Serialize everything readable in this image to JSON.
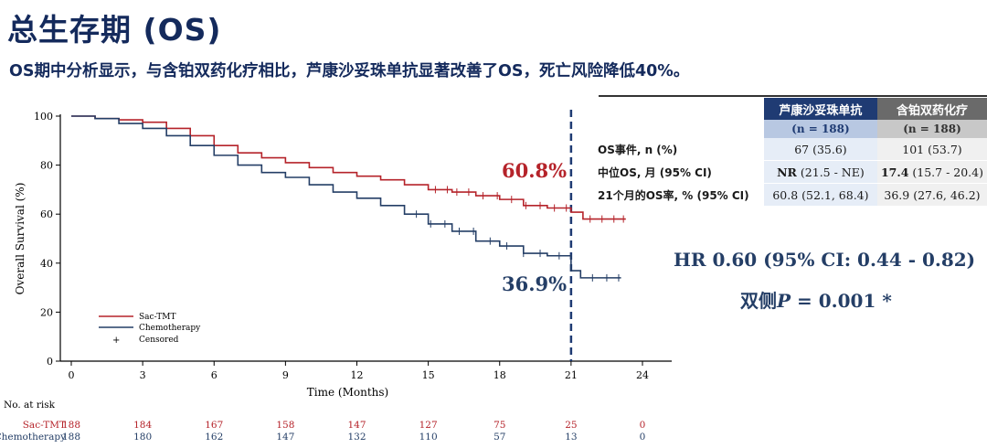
{
  "header": {
    "title": "总生存期 (OS)",
    "subtitle": "OS期中分析显示，与含铂双药化疗相比，芦康沙妥珠单抗显著改善了OS，死亡风险降低40%。"
  },
  "table": {
    "col1": "芦康沙妥珠单抗",
    "col2": "含铂双药化疗",
    "n1": "(n = 188)",
    "n2": "(n = 188)",
    "rows": [
      {
        "label": "OS事件, n (%)",
        "v1": "67 (35.6)",
        "v2": "101 (53.7)"
      },
      {
        "label": "中位OS, 月 (95% CI)",
        "v1_bold": "NR",
        "v1": " (21.5 - NE)",
        "v2_bold": "17.4",
        "v2": " (15.7 - 20.4)"
      },
      {
        "label": "21个月的OS率, % (95% CI)",
        "v1": "60.8 (52.1, 68.4)",
        "v2": "36.9 (27.6, 46.2)"
      }
    ]
  },
  "stats": {
    "hr": "HR 0.60 (95% CI: 0.44 - 0.82)",
    "p_prefix": "双侧",
    "p_var": "P",
    "p_suffix": " = 0.001 *"
  },
  "chart_data": {
    "type": "line",
    "xlabel": "Time (Months)",
    "ylabel": "Overall Survival (%)",
    "xlim": [
      0,
      24
    ],
    "ylim": [
      0,
      100
    ],
    "xticks": [
      0,
      3,
      6,
      9,
      12,
      15,
      18,
      21,
      24
    ],
    "yticks": [
      0,
      20,
      40,
      60,
      80,
      100
    ],
    "reference_line_x": 21,
    "annotations": [
      {
        "text": "60.8%",
        "series": "Sac-TMT",
        "color": "#b5232a"
      },
      {
        "text": "36.9%",
        "series": "Chemotherapy",
        "color": "#243e66"
      }
    ],
    "legend": {
      "position": "bottom-left",
      "censored_label": "Censored"
    },
    "series": [
      {
        "name": "Sac-TMT",
        "color": "#b5232a",
        "x": [
          0,
          1,
          2,
          3,
          4,
          5,
          6,
          7,
          8,
          9,
          10,
          11,
          12,
          13,
          14,
          15,
          16,
          17,
          18,
          19,
          20,
          21,
          21.5,
          22,
          23.3
        ],
        "y": [
          100,
          99,
          98.5,
          97.5,
          95,
          92,
          88,
          85,
          83,
          81,
          79,
          77,
          75.5,
          74,
          72,
          70,
          69,
          67.5,
          66,
          63.5,
          62.5,
          60.8,
          58,
          58,
          58
        ],
        "censored_x": [
          15.3,
          15.8,
          16.2,
          16.7,
          17.3,
          17.9,
          18.5,
          19.1,
          19.7,
          20.3,
          20.8,
          21.8,
          22.3,
          22.8,
          23.2
        ]
      },
      {
        "name": "Chemotherapy",
        "color": "#243e66",
        "x": [
          0,
          1,
          2,
          3,
          4,
          5,
          6,
          7,
          8,
          9,
          10,
          11,
          12,
          13,
          14,
          15,
          16,
          17,
          18,
          19,
          20,
          21,
          21.4,
          22,
          23.1
        ],
        "y": [
          100,
          99,
          97,
          95,
          92,
          88,
          84,
          80,
          77,
          75,
          72,
          69,
          66.5,
          63.5,
          60,
          56,
          53,
          49,
          47,
          44,
          43,
          36.9,
          34,
          34,
          34
        ],
        "censored_x": [
          14.5,
          15.1,
          15.7,
          16.3,
          16.9,
          17.6,
          18.3,
          19.0,
          19.7,
          20.5,
          21.9,
          22.5,
          23.0
        ]
      }
    ],
    "risk_table": {
      "title": "No. at risk",
      "times": [
        0,
        3,
        6,
        9,
        12,
        15,
        18,
        21,
        24
      ],
      "rows": [
        {
          "name": "Sac-TMT",
          "color": "#b5232a",
          "values": [
            "188",
            "184",
            "167",
            "158",
            "147",
            "127",
            "75",
            "25",
            "0"
          ]
        },
        {
          "name": "Chemotherapy",
          "color": "#243e66",
          "values": [
            "188",
            "180",
            "162",
            "147",
            "132",
            "110",
            "57",
            "13",
            "0"
          ]
        }
      ]
    }
  }
}
